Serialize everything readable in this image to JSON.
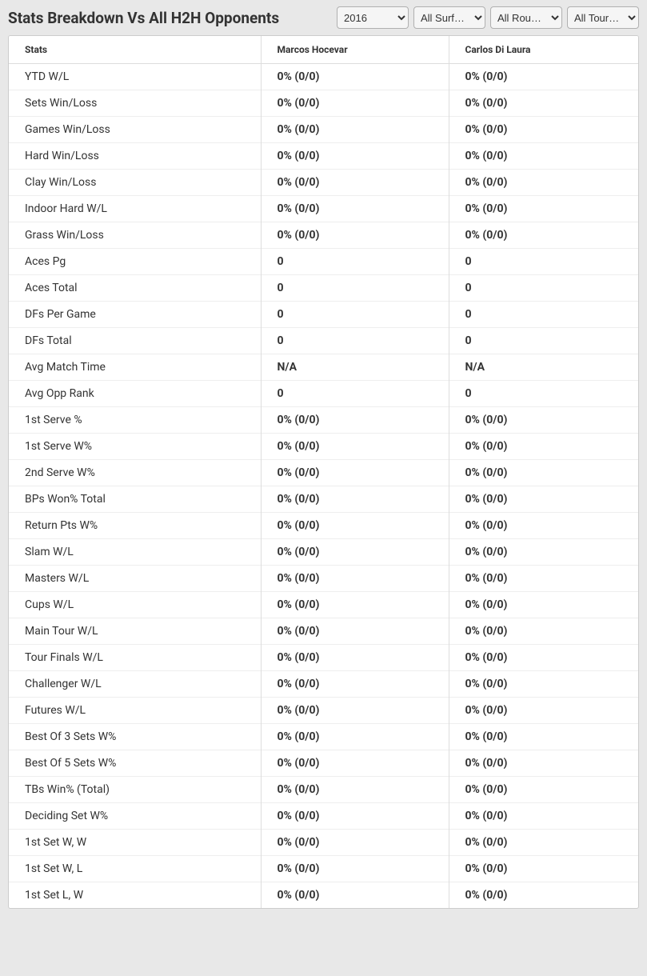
{
  "header": {
    "title": "Stats Breakdown Vs All H2H Opponents",
    "filters": {
      "year": "2016",
      "surface": "All Surf…",
      "round": "All Rou…",
      "tour": "All Tour…"
    }
  },
  "table": {
    "columns": {
      "stats": "Stats",
      "player1": "Marcos Hocevar",
      "player2": "Carlos Di Laura"
    },
    "rows": [
      {
        "stat": "YTD W/L",
        "p1": "0% (0/0)",
        "p2": "0% (0/0)"
      },
      {
        "stat": "Sets Win/Loss",
        "p1": "0% (0/0)",
        "p2": "0% (0/0)"
      },
      {
        "stat": "Games Win/Loss",
        "p1": "0% (0/0)",
        "p2": "0% (0/0)"
      },
      {
        "stat": "Hard Win/Loss",
        "p1": "0% (0/0)",
        "p2": "0% (0/0)"
      },
      {
        "stat": "Clay Win/Loss",
        "p1": "0% (0/0)",
        "p2": "0% (0/0)"
      },
      {
        "stat": "Indoor Hard W/L",
        "p1": "0% (0/0)",
        "p2": "0% (0/0)"
      },
      {
        "stat": "Grass Win/Loss",
        "p1": "0% (0/0)",
        "p2": "0% (0/0)"
      },
      {
        "stat": "Aces Pg",
        "p1": "0",
        "p2": "0"
      },
      {
        "stat": "Aces Total",
        "p1": "0",
        "p2": "0"
      },
      {
        "stat": "DFs Per Game",
        "p1": "0",
        "p2": "0"
      },
      {
        "stat": "DFs Total",
        "p1": "0",
        "p2": "0"
      },
      {
        "stat": "Avg Match Time",
        "p1": "N/A",
        "p2": "N/A"
      },
      {
        "stat": "Avg Opp Rank",
        "p1": "0",
        "p2": "0"
      },
      {
        "stat": "1st Serve %",
        "p1": "0% (0/0)",
        "p2": "0% (0/0)"
      },
      {
        "stat": "1st Serve W%",
        "p1": "0% (0/0)",
        "p2": "0% (0/0)"
      },
      {
        "stat": "2nd Serve W%",
        "p1": "0% (0/0)",
        "p2": "0% (0/0)"
      },
      {
        "stat": "BPs Won% Total",
        "p1": "0% (0/0)",
        "p2": "0% (0/0)"
      },
      {
        "stat": "Return Pts W%",
        "p1": "0% (0/0)",
        "p2": "0% (0/0)"
      },
      {
        "stat": "Slam W/L",
        "p1": "0% (0/0)",
        "p2": "0% (0/0)"
      },
      {
        "stat": "Masters W/L",
        "p1": "0% (0/0)",
        "p2": "0% (0/0)"
      },
      {
        "stat": "Cups W/L",
        "p1": "0% (0/0)",
        "p2": "0% (0/0)"
      },
      {
        "stat": "Main Tour W/L",
        "p1": "0% (0/0)",
        "p2": "0% (0/0)"
      },
      {
        "stat": "Tour Finals W/L",
        "p1": "0% (0/0)",
        "p2": "0% (0/0)"
      },
      {
        "stat": "Challenger W/L",
        "p1": "0% (0/0)",
        "p2": "0% (0/0)"
      },
      {
        "stat": "Futures W/L",
        "p1": "0% (0/0)",
        "p2": "0% (0/0)"
      },
      {
        "stat": "Best Of 3 Sets W%",
        "p1": "0% (0/0)",
        "p2": "0% (0/0)"
      },
      {
        "stat": "Best Of 5 Sets W%",
        "p1": "0% (0/0)",
        "p2": "0% (0/0)"
      },
      {
        "stat": "TBs Win% (Total)",
        "p1": "0% (0/0)",
        "p2": "0% (0/0)"
      },
      {
        "stat": "Deciding Set W%",
        "p1": "0% (0/0)",
        "p2": "0% (0/0)"
      },
      {
        "stat": "1st Set W, W",
        "p1": "0% (0/0)",
        "p2": "0% (0/0)"
      },
      {
        "stat": "1st Set W, L",
        "p1": "0% (0/0)",
        "p2": "0% (0/0)"
      },
      {
        "stat": "1st Set L, W",
        "p1": "0% (0/0)",
        "p2": "0% (0/0)"
      }
    ]
  }
}
